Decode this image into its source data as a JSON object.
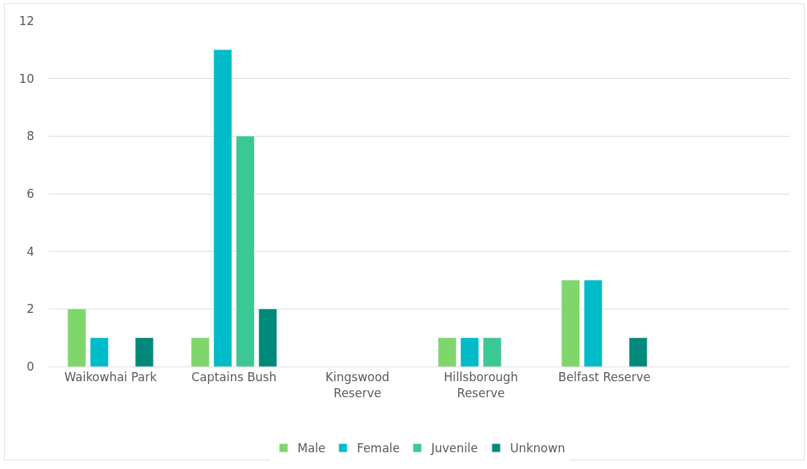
{
  "chart_data": {
    "type": "bar",
    "categories": [
      "Waikowhai Park",
      "Captains Bush",
      "Kingswood Reserve",
      "Hillsborough Reserve",
      "Belfast Reserve",
      null
    ],
    "series": [
      {
        "name": "Male",
        "color": "#7fd66a",
        "values": [
          2,
          1,
          null,
          1,
          3,
          null
        ]
      },
      {
        "name": "Female",
        "color": "#00bcc8",
        "values": [
          1,
          11,
          null,
          1,
          3,
          null
        ]
      },
      {
        "name": "Juvenile",
        "color": "#3cc893",
        "values": [
          null,
          8,
          null,
          1,
          null,
          null
        ]
      },
      {
        "name": "Unknown",
        "color": "#00897b",
        "values": [
          1,
          2,
          null,
          null,
          1,
          null
        ]
      }
    ],
    "ylim": [
      0,
      12
    ],
    "yticks": [
      0,
      2,
      4,
      6,
      8,
      10,
      12
    ],
    "grid": "y",
    "legend": "bottom"
  }
}
